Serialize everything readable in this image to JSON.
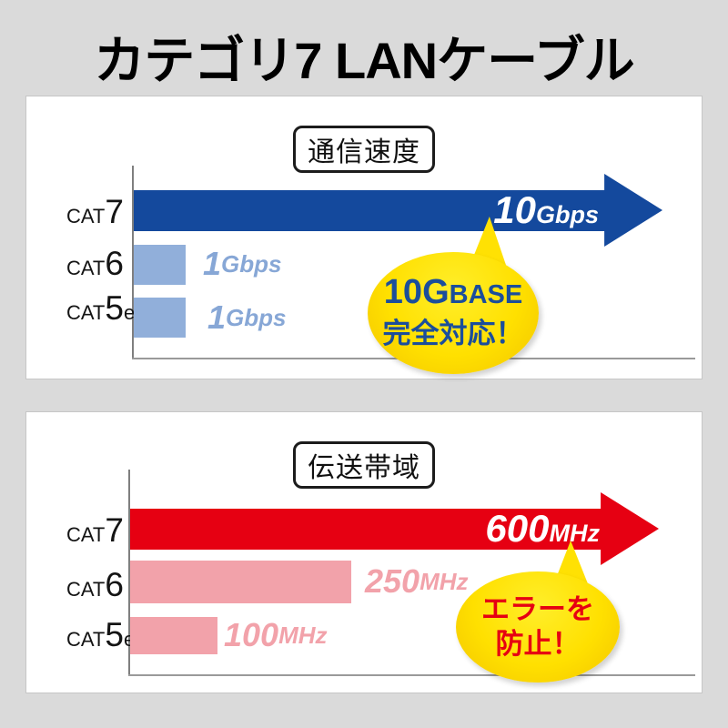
{
  "title": "カテゴリ7 LANケーブル",
  "colors": {
    "background": "#dadada",
    "panel": "#ffffff",
    "speed_arrow_blue": "#14499d",
    "speed_bar_light_blue": "#91afda",
    "speed_value_text_blue": "#87a7d6",
    "band_arrow_red": "#e60012",
    "band_bar_pink": "#f2a2aa",
    "bubble_yellow": "#ffe000",
    "bubble_text_blue": "#1b4e9b",
    "bubble_text_red": "#e60012"
  },
  "panels": [
    {
      "label": "通信速度",
      "rows": [
        {
          "cat": "CAT",
          "num": "7",
          "suffix": "",
          "value": "10",
          "unit": "Gbps"
        },
        {
          "cat": "CAT",
          "num": "6",
          "suffix": "",
          "value": "1",
          "unit": "Gbps"
        },
        {
          "cat": "CAT",
          "num": "5",
          "suffix": "e",
          "value": "1",
          "unit": "Gbps"
        }
      ],
      "bubble": {
        "line1_big": "10G",
        "line1_small": "BASE",
        "line2": "完全対応！"
      }
    },
    {
      "label": "伝送帯域",
      "rows": [
        {
          "cat": "CAT",
          "num": "7",
          "suffix": "",
          "value": "600",
          "unit": "MHz"
        },
        {
          "cat": "CAT",
          "num": "6",
          "suffix": "",
          "value": "250",
          "unit": "MHz"
        },
        {
          "cat": "CAT",
          "num": "5",
          "suffix": "e",
          "value": "100",
          "unit": "MHz"
        }
      ],
      "bubble": {
        "line1": "エラーを",
        "line2": "防止！"
      }
    }
  ],
  "chart_data": [
    {
      "type": "bar",
      "orientation": "horizontal",
      "title": "通信速度",
      "categories": [
        "CAT7",
        "CAT6",
        "CAT5e"
      ],
      "values": [
        10,
        1,
        1
      ],
      "unit": "Gbps",
      "value_labels": [
        "10Gbps",
        "1Gbps",
        "1Gbps"
      ],
      "highlight_category": "CAT7",
      "highlight_style": "full-width arrow",
      "annotation": "10GBASE 完全対応！",
      "grid": false,
      "legend": false
    },
    {
      "type": "bar",
      "orientation": "horizontal",
      "title": "伝送帯域",
      "categories": [
        "CAT7",
        "CAT6",
        "CAT5e"
      ],
      "values": [
        600,
        250,
        100
      ],
      "unit": "MHz",
      "value_labels": [
        "600MHz",
        "250MHz",
        "100MHz"
      ],
      "highlight_category": "CAT7",
      "highlight_style": "full-width arrow",
      "annotation": "エラーを 防止！",
      "grid": false,
      "legend": false
    }
  ]
}
